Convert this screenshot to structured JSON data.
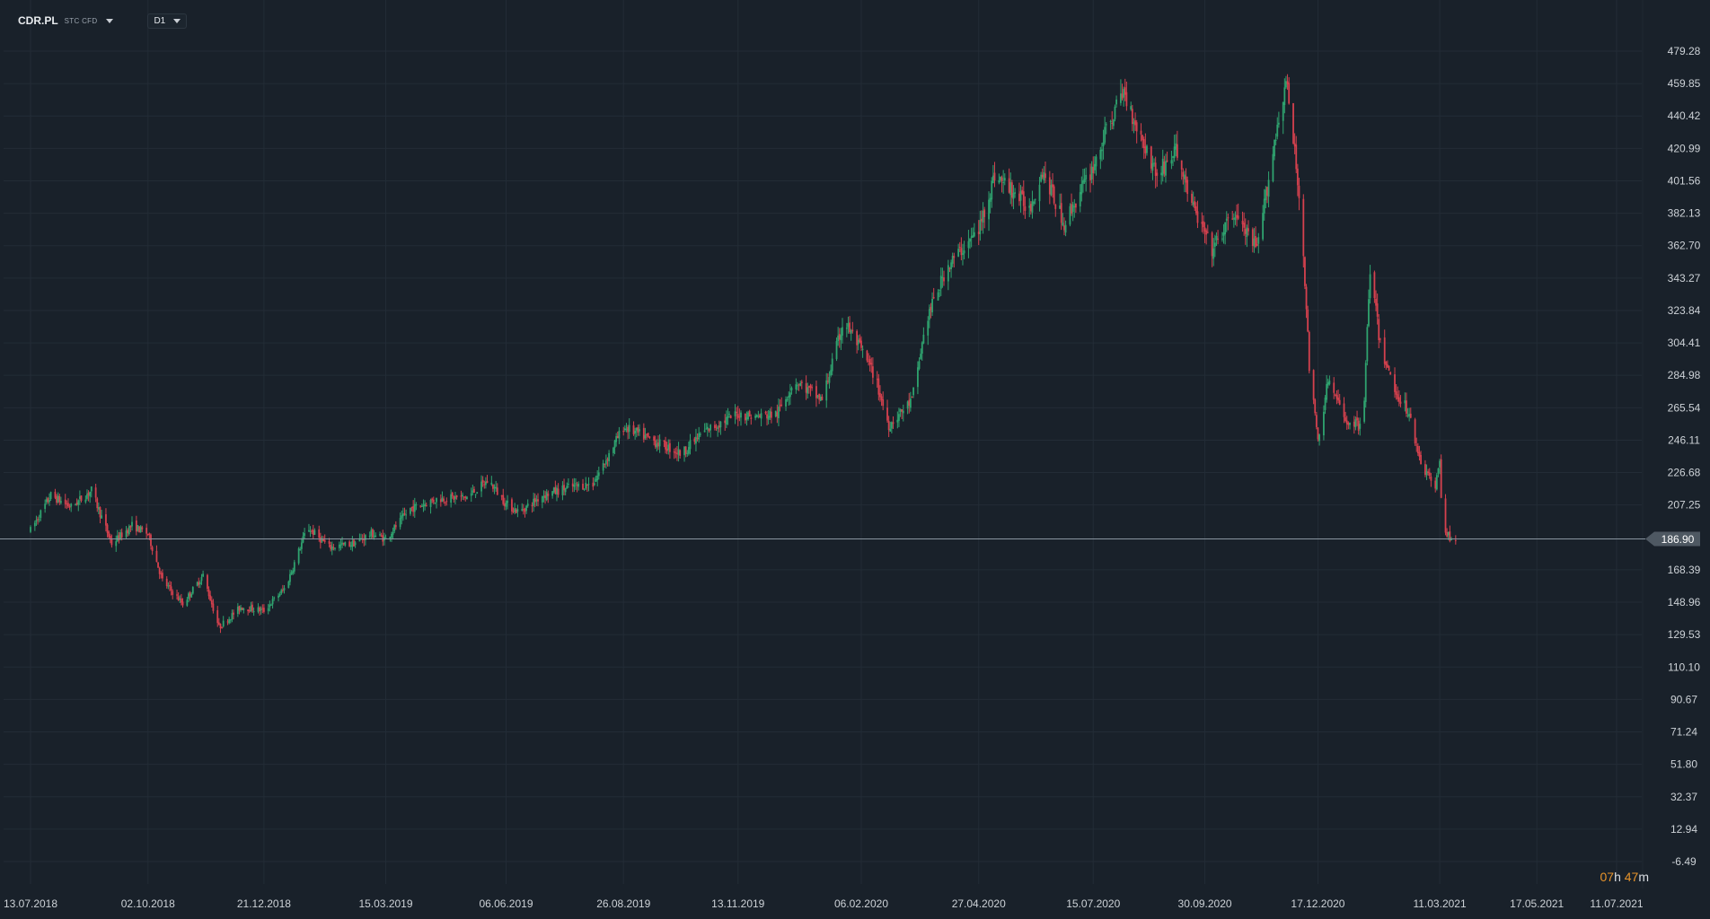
{
  "toolbar": {
    "symbol": "CDR.PL",
    "symbol_tags": "STC CFD",
    "symbol_dropdown_icon": "caret-down-icon",
    "timeframe": "D1",
    "timeframe_dropdown_icon": "caret-down-icon"
  },
  "timer": {
    "hours": "07",
    "hours_unit": "h",
    "minutes": "47",
    "minutes_unit": "m"
  },
  "colors": {
    "background": "#19212a",
    "grid": "#232c36",
    "up": "#2fa36f",
    "down": "#d5414e",
    "price_line": "#8a95a0",
    "price_tag": "#4e5862",
    "countdown": "#e8942b"
  },
  "chart_data": {
    "type": "candlestick",
    "symbol": "CDR.PL",
    "timeframe": "D1",
    "current_price": 186.9,
    "current_price_label": "186.90",
    "ylim": [
      -6.49,
      479.28
    ],
    "y_ticks": [
      "479.28",
      "459.85",
      "440.42",
      "420.99",
      "401.56",
      "382.13",
      "362.70",
      "343.27",
      "323.84",
      "304.41",
      "284.98",
      "265.54",
      "246.11",
      "226.68",
      "207.25",
      "186.90",
      "168.39",
      "148.96",
      "129.53",
      "110.10",
      "90.67",
      "71.24",
      "51.80",
      "32.37",
      "12.94",
      "-6.49"
    ],
    "x_ticks": [
      "13.07.2018",
      "02.10.2018",
      "21.12.2018",
      "15.03.2019",
      "06.06.2019",
      "26.08.2019",
      "13.11.2019",
      "06.02.2020",
      "27.04.2020",
      "15.07.2020",
      "30.09.2020",
      "17.12.2020",
      "11.03.2021",
      "17.05.2021",
      "11.07.2021"
    ],
    "xlim": [
      "2018-07-13",
      "2021-07-11"
    ],
    "grid": true,
    "legend": "none",
    "price_path": [
      [
        "2018-07-13",
        192
      ],
      [
        "2018-07-27",
        213
      ],
      [
        "2018-08-10",
        206
      ],
      [
        "2018-08-24",
        216
      ],
      [
        "2018-09-07",
        184
      ],
      [
        "2018-09-21",
        195
      ],
      [
        "2018-10-02",
        190
      ],
      [
        "2018-10-12",
        162
      ],
      [
        "2018-10-26",
        148
      ],
      [
        "2018-11-09",
        165
      ],
      [
        "2018-11-20",
        134
      ],
      [
        "2018-12-05",
        146
      ],
      [
        "2018-12-21",
        144
      ],
      [
        "2019-01-05",
        158
      ],
      [
        "2019-01-20",
        194
      ],
      [
        "2019-02-04",
        182
      ],
      [
        "2019-02-20",
        184
      ],
      [
        "2019-03-05",
        190
      ],
      [
        "2019-03-15",
        187
      ],
      [
        "2019-04-01",
        205
      ],
      [
        "2019-04-20",
        211
      ],
      [
        "2019-05-10",
        212
      ],
      [
        "2019-05-25",
        222
      ],
      [
        "2019-06-06",
        208
      ],
      [
        "2019-06-15",
        203
      ],
      [
        "2019-07-01",
        213
      ],
      [
        "2019-07-20",
        218
      ],
      [
        "2019-08-05",
        220
      ],
      [
        "2019-08-26",
        254
      ],
      [
        "2019-09-15",
        246
      ],
      [
        "2019-10-05",
        238
      ],
      [
        "2019-10-20",
        251
      ],
      [
        "2019-11-13",
        262
      ],
      [
        "2019-11-25",
        260
      ],
      [
        "2019-12-10",
        262
      ],
      [
        "2019-12-22",
        282
      ],
      [
        "2020-01-10",
        270
      ],
      [
        "2020-01-25",
        318
      ],
      [
        "2020-02-06",
        300
      ],
      [
        "2020-02-15",
        285
      ],
      [
        "2020-02-25",
        255
      ],
      [
        "2020-03-12",
        270
      ],
      [
        "2020-03-22",
        318
      ],
      [
        "2020-04-05",
        350
      ],
      [
        "2020-04-27",
        372
      ],
      [
        "2020-05-08",
        405
      ],
      [
        "2020-05-20",
        396
      ],
      [
        "2020-06-01",
        385
      ],
      [
        "2020-06-10",
        408
      ],
      [
        "2020-06-25",
        376
      ],
      [
        "2020-07-15",
        410
      ],
      [
        "2020-07-28",
        440
      ],
      [
        "2020-08-05",
        455
      ],
      [
        "2020-08-15",
        432
      ],
      [
        "2020-08-28",
        405
      ],
      [
        "2020-09-10",
        420
      ],
      [
        "2020-09-22",
        385
      ],
      [
        "2020-10-05",
        360
      ],
      [
        "2020-10-20",
        382
      ],
      [
        "2020-11-05",
        360
      ],
      [
        "2020-11-18",
        430
      ],
      [
        "2020-11-25",
        462
      ],
      [
        "2020-12-02",
        410
      ],
      [
        "2020-12-07",
        360
      ],
      [
        "2020-12-11",
        290
      ],
      [
        "2020-12-17",
        245
      ],
      [
        "2020-12-24",
        282
      ],
      [
        "2021-01-05",
        258
      ],
      [
        "2021-01-14",
        255
      ],
      [
        "2021-01-18",
        272
      ],
      [
        "2021-01-22",
        350
      ],
      [
        "2021-01-29",
        303
      ],
      [
        "2021-02-08",
        276
      ],
      [
        "2021-02-17",
        264
      ],
      [
        "2021-02-27",
        230
      ],
      [
        "2021-03-04",
        224
      ],
      [
        "2021-03-08",
        216
      ],
      [
        "2021-03-11",
        236
      ],
      [
        "2021-03-13",
        192
      ],
      [
        "2021-03-18",
        188
      ],
      [
        "2021-03-22",
        187
      ]
    ]
  }
}
